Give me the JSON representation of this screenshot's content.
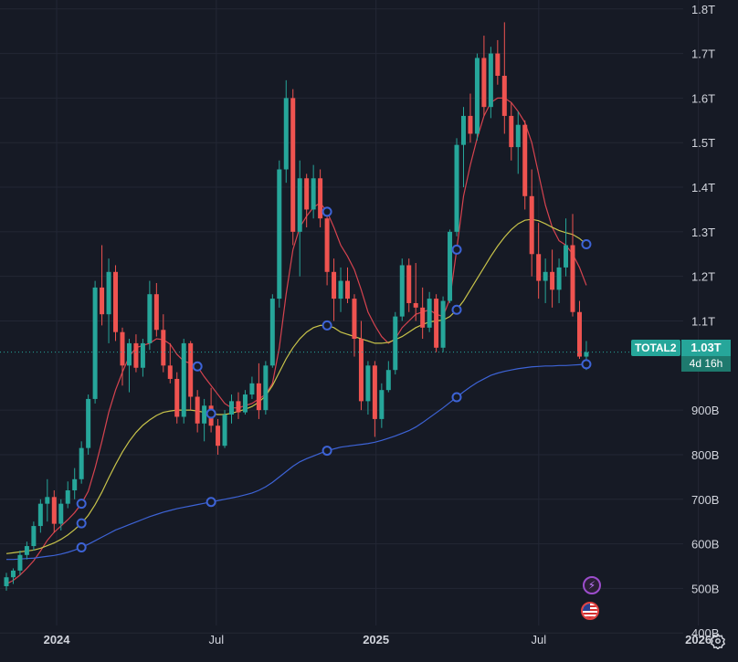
{
  "chart_data": {
    "type": "candlestick",
    "title": "",
    "symbol": "TOTAL2",
    "last_price_label": "1.03T",
    "countdown": "4d 16h",
    "x_start": "2023-11-13",
    "x_interval": "1 week",
    "xticks": [
      {
        "label": "2024",
        "major": true
      },
      {
        "label": "Jul",
        "major": false
      },
      {
        "label": "2025",
        "major": true
      },
      {
        "label": "Jul",
        "major": false
      },
      {
        "label": "2026",
        "major": true
      }
    ],
    "yticks": [
      "400B",
      "500B",
      "600B",
      "700B",
      "800B",
      "900B",
      "1.1T",
      "1.2T",
      "1.3T",
      "1.4T",
      "1.5T",
      "1.6T",
      "1.7T",
      "1.8T"
    ],
    "ylim": [
      380,
      1820
    ],
    "y_unit": "billion USD",
    "grid": true,
    "candles": [
      [
        505,
        535,
        495,
        525
      ],
      [
        525,
        545,
        510,
        540
      ],
      [
        540,
        585,
        530,
        575
      ],
      [
        575,
        605,
        565,
        595
      ],
      [
        595,
        650,
        585,
        640
      ],
      [
        640,
        700,
        625,
        690
      ],
      [
        690,
        745,
        650,
        705
      ],
      [
        705,
        720,
        625,
        645
      ],
      [
        645,
        700,
        630,
        690
      ],
      [
        690,
        740,
        680,
        720
      ],
      [
        720,
        770,
        700,
        745
      ],
      [
        745,
        830,
        735,
        815
      ],
      [
        815,
        935,
        800,
        925
      ],
      [
        925,
        1190,
        915,
        1175
      ],
      [
        1175,
        1270,
        1090,
        1115
      ],
      [
        1115,
        1240,
        1050,
        1210
      ],
      [
        1210,
        1225,
        1055,
        1075
      ],
      [
        1075,
        1085,
        955,
        1000
      ],
      [
        1000,
        1060,
        940,
        1050
      ],
      [
        1050,
        1070,
        985,
        995
      ],
      [
        995,
        1060,
        975,
        1050
      ],
      [
        1050,
        1190,
        1035,
        1160
      ],
      [
        1160,
        1185,
        1065,
        1080
      ],
      [
        1080,
        1115,
        985,
        1000
      ],
      [
        1000,
        1050,
        960,
        970
      ],
      [
        970,
        985,
        870,
        885
      ],
      [
        885,
        1060,
        870,
        1050
      ],
      [
        1050,
        1055,
        900,
        930
      ],
      [
        930,
        945,
        850,
        870
      ],
      [
        870,
        925,
        830,
        910
      ],
      [
        910,
        950,
        850,
        865
      ],
      [
        865,
        880,
        800,
        820
      ],
      [
        820,
        900,
        815,
        890
      ],
      [
        890,
        935,
        870,
        920
      ],
      [
        920,
        940,
        880,
        895
      ],
      [
        895,
        945,
        890,
        935
      ],
      [
        935,
        975,
        925,
        960
      ],
      [
        960,
        1005,
        880,
        900
      ],
      [
        900,
        1010,
        890,
        1000
      ],
      [
        1000,
        1160,
        995,
        1150
      ],
      [
        1150,
        1460,
        1130,
        1440
      ],
      [
        1440,
        1640,
        1410,
        1600
      ],
      [
        1600,
        1620,
        1270,
        1300
      ],
      [
        1300,
        1460,
        1200,
        1420
      ],
      [
        1420,
        1430,
        1310,
        1350
      ],
      [
        1350,
        1450,
        1330,
        1420
      ],
      [
        1420,
        1440,
        1310,
        1330
      ],
      [
        1330,
        1350,
        1180,
        1210
      ],
      [
        1210,
        1240,
        1100,
        1150
      ],
      [
        1150,
        1220,
        1120,
        1190
      ],
      [
        1190,
        1220,
        1140,
        1150
      ],
      [
        1150,
        1160,
        1020,
        1060
      ],
      [
        1060,
        1100,
        900,
        920
      ],
      [
        920,
        1010,
        890,
        1000
      ],
      [
        1000,
        1010,
        840,
        880
      ],
      [
        880,
        960,
        860,
        945
      ],
      [
        945,
        1010,
        940,
        990
      ],
      [
        990,
        1120,
        980,
        1110
      ],
      [
        1110,
        1240,
        1100,
        1225
      ],
      [
        1225,
        1240,
        1120,
        1140
      ],
      [
        1140,
        1230,
        1100,
        1130
      ],
      [
        1130,
        1175,
        1060,
        1085
      ],
      [
        1085,
        1165,
        1075,
        1150
      ],
      [
        1150,
        1160,
        1030,
        1040
      ],
      [
        1040,
        1155,
        1030,
        1145
      ],
      [
        1145,
        1305,
        1140,
        1300
      ],
      [
        1300,
        1510,
        1290,
        1495
      ],
      [
        1495,
        1580,
        1400,
        1560
      ],
      [
        1560,
        1610,
        1500,
        1520
      ],
      [
        1520,
        1700,
        1505,
        1690
      ],
      [
        1690,
        1740,
        1560,
        1580
      ],
      [
        1580,
        1715,
        1555,
        1700
      ],
      [
        1700,
        1730,
        1630,
        1650
      ],
      [
        1650,
        1770,
        1520,
        1560
      ],
      [
        1560,
        1590,
        1460,
        1490
      ],
      [
        1490,
        1570,
        1430,
        1540
      ],
      [
        1540,
        1550,
        1350,
        1380
      ],
      [
        1380,
        1440,
        1200,
        1250
      ],
      [
        1250,
        1320,
        1150,
        1190
      ],
      [
        1190,
        1240,
        1140,
        1210
      ],
      [
        1210,
        1260,
        1130,
        1170
      ],
      [
        1170,
        1240,
        1140,
        1220
      ],
      [
        1220,
        1330,
        1200,
        1270
      ],
      [
        1270,
        1340,
        1110,
        1120
      ],
      [
        1120,
        1145,
        1015,
        1020
      ],
      [
        1020,
        1055,
        990,
        1030
      ]
    ],
    "series": [
      {
        "name": "",
        "color": "#d6434f",
        "values": [
          510,
          518,
          530,
          545,
          562,
          584,
          608,
          626,
          640,
          654,
          670,
          690,
          718,
          770,
          830,
          895,
          945,
          985,
          1020,
          1040,
          1045,
          1050,
          1060,
          1058,
          1048,
          1025,
          1010,
          1005,
          998,
          975,
          955,
          935,
          915,
          905,
          905,
          910,
          915,
          925,
          935,
          960,
          1040,
          1160,
          1260,
          1310,
          1335,
          1355,
          1365,
          1345,
          1310,
          1270,
          1245,
          1215,
          1170,
          1120,
          1090,
          1065,
          1050,
          1060,
          1085,
          1100,
          1115,
          1120,
          1125,
          1115,
          1110,
          1150,
          1260,
          1380,
          1450,
          1510,
          1560,
          1590,
          1600,
          1600,
          1590,
          1570,
          1545,
          1500,
          1430,
          1360,
          1310,
          1280,
          1270,
          1250,
          1220,
          1180
        ]
      },
      {
        "name": "",
        "color": "#c8c34a",
        "values": [
          578,
          580,
          582,
          584,
          586,
          590,
          596,
          602,
          610,
          620,
          632,
          646,
          664,
          688,
          716,
          748,
          778,
          806,
          830,
          850,
          866,
          878,
          888,
          895,
          898,
          900,
          900,
          900,
          898,
          895,
          892,
          890,
          890,
          893,
          897,
          902,
          908,
          918,
          932,
          955,
          985,
          1015,
          1040,
          1060,
          1075,
          1085,
          1090,
          1090,
          1085,
          1075,
          1070,
          1065,
          1060,
          1055,
          1050,
          1050,
          1052,
          1058,
          1065,
          1075,
          1085,
          1092,
          1098,
          1100,
          1102,
          1110,
          1125,
          1145,
          1170,
          1195,
          1220,
          1245,
          1268,
          1288,
          1305,
          1318,
          1326,
          1328,
          1325,
          1318,
          1310,
          1303,
          1298,
          1294,
          1285,
          1272
        ]
      },
      {
        "name": "",
        "color": "#3d63d6",
        "values": [
          565,
          565,
          566,
          567,
          568,
          570,
          572,
          574,
          577,
          581,
          586,
          592,
          599,
          607,
          615,
          623,
          631,
          637,
          643,
          649,
          655,
          661,
          666,
          671,
          675,
          679,
          682,
          685,
          688,
          691,
          694,
          697,
          700,
          703,
          706,
          710,
          714,
          720,
          728,
          738,
          750,
          762,
          774,
          784,
          791,
          797,
          803,
          809,
          813,
          817,
          819,
          821,
          823,
          825,
          828,
          832,
          837,
          842,
          848,
          854,
          862,
          872,
          883,
          894,
          905,
          917,
          929,
          941,
          952,
          962,
          970,
          978,
          983,
          987,
          990,
          993,
          995,
          997,
          998,
          999,
          999,
          1000,
          1000,
          1001,
          1002,
          1003
        ]
      }
    ],
    "markers": [
      {
        "series": 2,
        "index": 11,
        "color": "#3d63d6"
      },
      {
        "series": 1,
        "index": 11,
        "color": "#3d63d6"
      },
      {
        "series": 0,
        "index": 11,
        "color": "#3d63d6"
      },
      {
        "series": 1,
        "index": 30,
        "color": "#3d63d6"
      },
      {
        "series": 2,
        "index": 30,
        "color": "#3d63d6"
      },
      {
        "series": 0,
        "index": 28,
        "color": "#3d63d6"
      },
      {
        "series": 0,
        "index": 47,
        "color": "#3d63d6"
      },
      {
        "series": 1,
        "index": 47,
        "color": "#3d63d6"
      },
      {
        "series": 2,
        "index": 47,
        "color": "#3d63d6"
      },
      {
        "series": 2,
        "index": 66,
        "color": "#3d63d6"
      },
      {
        "series": 0,
        "index": 66,
        "color": "#3d63d6"
      },
      {
        "series": 1,
        "index": 66,
        "color": "#3d63d6"
      },
      {
        "series": 1,
        "index": 85,
        "color": "#3d63d6"
      },
      {
        "series": 2,
        "index": 85,
        "color": "#3d63d6"
      }
    ],
    "colors": {
      "up": "#26a69a",
      "down": "#ef5350",
      "last_price": "#26a69a"
    }
  },
  "icons": {
    "flash": "flash-icon",
    "flag": "us-flag-icon",
    "settings": "gear-icon"
  }
}
